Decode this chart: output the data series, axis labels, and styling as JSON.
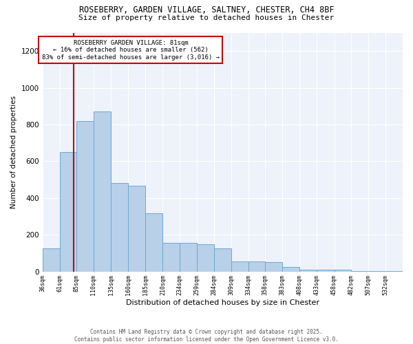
{
  "title_line1": "ROSEBERRY, GARDEN VILLAGE, SALTNEY, CHESTER, CH4 8BF",
  "title_line2": "Size of property relative to detached houses in Chester",
  "xlabel": "Distribution of detached houses by size in Chester",
  "ylabel": "Number of detached properties",
  "bar_left_edges": [
    36,
    61,
    85,
    110,
    135,
    160,
    185,
    210,
    234,
    259,
    284,
    309,
    334,
    358,
    383,
    408,
    433,
    458,
    482,
    507,
    532
  ],
  "bar_heights": [
    125,
    650,
    820,
    870,
    480,
    465,
    315,
    155,
    155,
    150,
    125,
    55,
    55,
    50,
    25,
    10,
    8,
    8,
    4,
    4,
    3
  ],
  "bar_color": "#b8d0e8",
  "bar_edge_color": "#6aaad4",
  "property_size": 81,
  "annotation_line1": "ROSEBERRY GARDEN VILLAGE: 81sqm",
  "annotation_line2": "← 16% of detached houses are smaller (562)",
  "annotation_line3": "83% of semi-detached houses are larger (3,016) →",
  "vline_color": "#cc0000",
  "annotation_box_edge": "#cc0000",
  "ylim": [
    0,
    1300
  ],
  "background_color": "#eef2fa",
  "footer_line1": "Contains HM Land Registry data © Crown copyright and database right 2025.",
  "footer_line2": "Contains public sector information licensed under the Open Government Licence v3.0.",
  "tick_labels": [
    "36sqm",
    "61sqm",
    "85sqm",
    "110sqm",
    "135sqm",
    "160sqm",
    "185sqm",
    "210sqm",
    "234sqm",
    "259sqm",
    "284sqm",
    "309sqm",
    "334sqm",
    "358sqm",
    "383sqm",
    "408sqm",
    "433sqm",
    "458sqm",
    "482sqm",
    "507sqm",
    "532sqm"
  ]
}
